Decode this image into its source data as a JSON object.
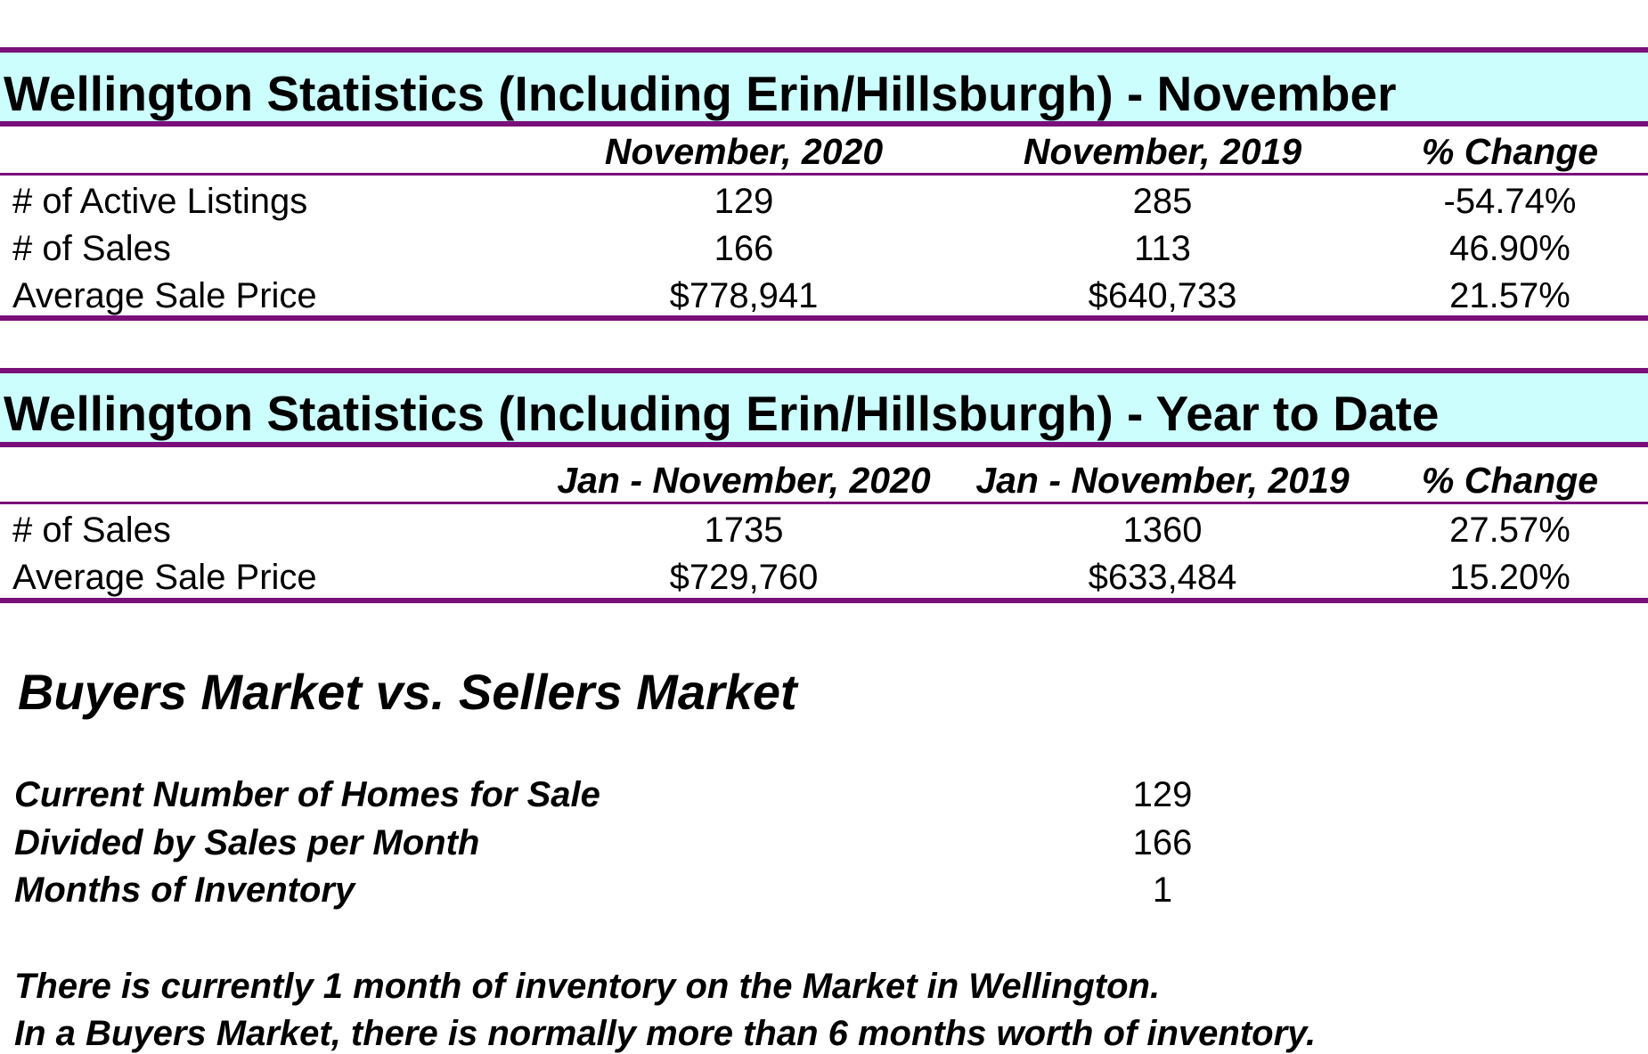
{
  "monthly": {
    "title": "Wellington Statistics (Including Erin/Hillsburgh) - November",
    "columns": [
      "November, 2020",
      "November, 2019",
      "% Change"
    ],
    "rows": [
      {
        "label": "# of Active Listings",
        "values": [
          "129",
          "285",
          "-54.74%"
        ]
      },
      {
        "label": "# of Sales",
        "values": [
          "166",
          "113",
          "46.90%"
        ]
      },
      {
        "label": "Average Sale Price",
        "values": [
          "$778,941",
          "$640,733",
          "21.57%"
        ]
      }
    ]
  },
  "ytd": {
    "title": "Wellington Statistics (Including Erin/Hillsburgh) - Year to Date",
    "columns": [
      "Jan - November, 2020",
      "Jan - November, 2019",
      "% Change"
    ],
    "rows": [
      {
        "label": "# of Sales",
        "values": [
          "1735",
          "1360",
          "27.57%"
        ]
      },
      {
        "label": "Average Sale Price",
        "values": [
          "$729,760",
          "$633,484",
          "15.20%"
        ]
      }
    ]
  },
  "market": {
    "heading": "Buyers Market vs. Sellers Market",
    "rows": [
      {
        "label": "Current Number of Homes for Sale",
        "value": "129"
      },
      {
        "label": "Divided by Sales per Month",
        "value": "166"
      },
      {
        "label": "Months of Inventory",
        "value": "1"
      }
    ],
    "notes": [
      "There is currently 1 month of inventory on the Market in Wellington.",
      "In a Buyers Market, there is normally more than 6 months worth of inventory."
    ]
  },
  "colors": {
    "rule": "#7a0f7a",
    "title_band": "#ccfefe"
  }
}
